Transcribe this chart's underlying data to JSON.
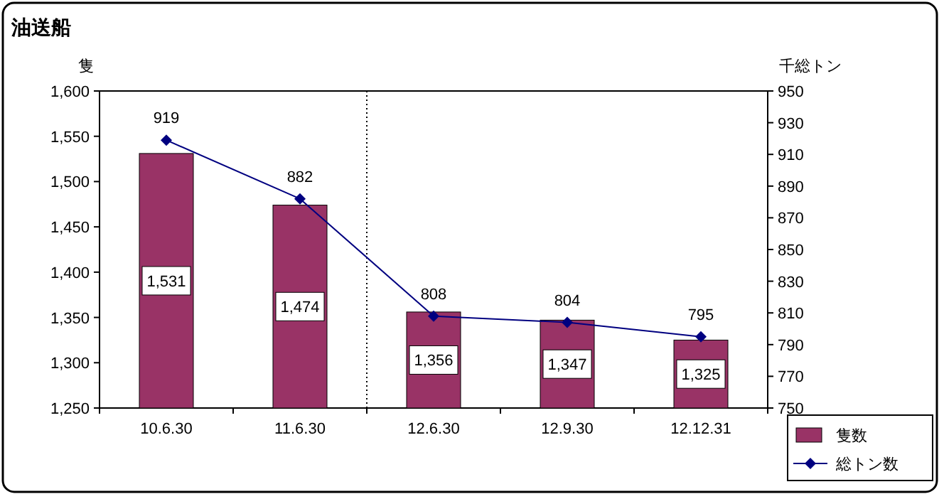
{
  "chart_data": {
    "type": "bar",
    "title": "油送船",
    "ylabel": "隻",
    "y2label": "千総トン",
    "categories": [
      "10.6.30",
      "11.6.30",
      "12.6.30",
      "12.9.30",
      "12.12.31"
    ],
    "series": [
      {
        "name": "隻数",
        "color": "#993366",
        "values": [
          1531,
          1474,
          1356,
          1347,
          1325
        ],
        "value_labels": [
          "1,531",
          "1,474",
          "1,356",
          "1,347",
          "1,325"
        ]
      },
      {
        "name": "総トン数",
        "type": "line",
        "axis": "y2",
        "color": "#000080",
        "marker": "diamond",
        "values": [
          919,
          882,
          808,
          804,
          795
        ],
        "value_labels": [
          "919",
          "882",
          "808",
          "804",
          "795"
        ]
      }
    ],
    "ylim": [
      1250,
      1600
    ],
    "yticks": [
      {
        "value": 1250,
        "label": "1,250"
      },
      {
        "value": 1300,
        "label": "1,300"
      },
      {
        "value": 1350,
        "label": "1,350"
      },
      {
        "value": 1400,
        "label": "1,400"
      },
      {
        "value": 1450,
        "label": "1,450"
      },
      {
        "value": 1500,
        "label": "1,500"
      },
      {
        "value": 1550,
        "label": "1,550"
      },
      {
        "value": 1600,
        "label": "1,600"
      }
    ],
    "y2lim": [
      750,
      950
    ],
    "y2ticks": [
      750,
      770,
      790,
      810,
      830,
      850,
      870,
      890,
      910,
      930,
      950
    ],
    "grid": false,
    "legend": "bottom right"
  }
}
